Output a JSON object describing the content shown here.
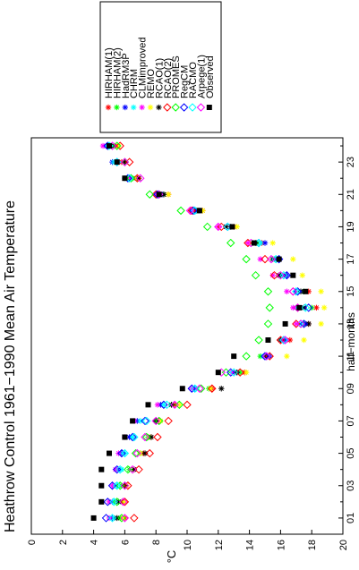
{
  "chart_data": {
    "type": "scatter",
    "title": "Heathrow Control 1961−1990 Mean Air Temperature",
    "xlabel": "half−months",
    "ylabel": "°C",
    "orientation": "rotated 90 degrees counter-clockwise",
    "xlim": [
      0,
      24.5
    ],
    "ylim": [
      0,
      20
    ],
    "x_ticks": [
      1,
      2,
      3,
      4,
      5,
      6,
      7,
      8,
      9,
      10,
      11,
      12,
      13,
      14,
      15,
      16,
      17,
      18,
      19,
      20,
      21,
      22,
      23,
      24
    ],
    "x_tick_labels": [
      "01",
      "03",
      "05",
      "07",
      "09",
      "11",
      "13",
      "15",
      "17",
      "19",
      "21",
      "23"
    ],
    "y_ticks": [
      0,
      2,
      4,
      6,
      8,
      10,
      12,
      14,
      16,
      18,
      20
    ],
    "y_tick_labels": [
      "0",
      "2",
      "4",
      "6",
      "8",
      "10",
      "12",
      "14",
      "16",
      "18",
      "20"
    ],
    "grid": false,
    "legend_position": "top, outside plot",
    "x": [
      1,
      2,
      3,
      4,
      5,
      6,
      7,
      8,
      9,
      10,
      11,
      12,
      13,
      14,
      15,
      16,
      17,
      18,
      19,
      20,
      21,
      22,
      23,
      24
    ],
    "series": [
      {
        "name": "HIRHAM(1)",
        "marker": "star",
        "color": "#ff0000",
        "values": [
          6.0,
          6.0,
          6.1,
          6.6,
          7.2,
          7.7,
          8.2,
          9.2,
          11.6,
          13.7,
          15.0,
          16.6,
          17.8,
          18.3,
          17.8,
          16.3,
          15.9,
          14.8,
          13.0,
          11.0,
          8.8,
          6.8,
          5.8,
          5.4
        ]
      },
      {
        "name": "HIRHAM(2)",
        "marker": "star",
        "color": "#00ff00",
        "values": [
          5.7,
          5.8,
          5.8,
          6.3,
          7.0,
          7.5,
          8.0,
          9.0,
          11.4,
          13.4,
          14.7,
          16.3,
          17.5,
          18.0,
          17.5,
          16.0,
          15.6,
          14.5,
          12.8,
          10.7,
          8.5,
          6.5,
          5.5,
          5.1
        ]
      },
      {
        "name": "HadRM3P",
        "marker": "star",
        "color": "#0000ff",
        "values": [
          5.2,
          5.2,
          5.4,
          5.6,
          5.8,
          6.3,
          6.8,
          8.3,
          10.5,
          13.2,
          15.3,
          16.3,
          17.6,
          17.5,
          17.3,
          16.4,
          15.8,
          15.0,
          12.8,
          10.8,
          8.4,
          6.2,
          5.2,
          4.8
        ]
      },
      {
        "name": "CHRM",
        "marker": "star",
        "color": "#00ffff",
        "values": [
          5.3,
          5.3,
          5.5,
          5.8,
          6.0,
          6.5,
          7.0,
          8.5,
          10.6,
          13.1,
          14.9,
          16.0,
          17.3,
          17.0,
          17.0,
          16.1,
          15.6,
          14.7,
          12.5,
          10.5,
          8.2,
          6.0,
          5.3,
          4.9
        ]
      },
      {
        "name": "CLMimproved",
        "marker": "star",
        "color": "#ff00ff",
        "values": [
          5.0,
          5.0,
          5.2,
          5.4,
          5.6,
          6.0,
          6.6,
          8.1,
          10.3,
          12.9,
          15.1,
          16.1,
          17.0,
          16.8,
          16.4,
          15.5,
          14.7,
          13.9,
          12.0,
          10.3,
          8.0,
          6.3,
          5.5,
          4.6
        ]
      },
      {
        "name": "REMO",
        "marker": "star",
        "color": "#ffff00",
        "values": [
          5.9,
          6.0,
          6.1,
          6.6,
          7.0,
          7.6,
          8.3,
          9.5,
          11.5,
          13.8,
          16.4,
          17.5,
          18.6,
          18.8,
          18.6,
          17.4,
          16.8,
          15.5,
          13.2,
          11.0,
          8.8,
          6.8,
          6.0,
          5.6
        ]
      },
      {
        "name": "RCAO(1)",
        "marker": "star",
        "color": "#000000",
        "values": [
          5.5,
          5.6,
          6.0,
          6.6,
          7.3,
          7.7,
          8.0,
          9.0,
          12.2,
          13.2,
          15.1,
          16.0,
          17.8,
          17.5,
          17.3,
          15.9,
          15.5,
          14.4,
          12.5,
          10.6,
          8.5,
          6.9,
          6.0,
          5.3
        ]
      },
      {
        "name": "RCAO(2)",
        "marker": "diamond",
        "color": "#ff0000",
        "values": [
          6.6,
          6.0,
          6.2,
          6.9,
          7.6,
          8.1,
          8.8,
          10.0,
          11.6,
          13.4,
          15.3,
          16.0,
          17.0,
          17.1,
          16.8,
          15.6,
          15.0,
          13.9,
          12.2,
          10.3,
          8.0,
          6.8,
          6.3,
          5.7
        ]
      },
      {
        "name": "PROMES",
        "marker": "diamond",
        "color": "#00ff00",
        "values": [
          5.8,
          5.5,
          5.7,
          6.2,
          6.7,
          7.4,
          8.2,
          9.5,
          10.9,
          12.5,
          13.8,
          14.6,
          15.2,
          15.3,
          15.2,
          14.4,
          13.8,
          12.8,
          11.3,
          9.6,
          7.6,
          6.4,
          6.0,
          5.5
        ]
      },
      {
        "name": "RegCM",
        "marker": "diamond",
        "color": "#0000ff",
        "values": [
          4.8,
          4.9,
          5.2,
          5.5,
          5.8,
          6.5,
          7.3,
          8.5,
          10.3,
          12.8,
          15.0,
          16.2,
          17.5,
          17.8,
          17.1,
          16.4,
          15.9,
          14.6,
          12.6,
          10.4,
          8.1,
          6.2,
          5.5,
          4.9
        ]
      },
      {
        "name": "RACMO",
        "marker": "diamond",
        "color": "#00ffff",
        "values": [
          5.2,
          5.3,
          5.5,
          5.7,
          6.0,
          6.6,
          7.4,
          8.7,
          10.5,
          13.0,
          15.1,
          16.2,
          17.3,
          17.6,
          17.0,
          16.2,
          15.7,
          14.6,
          12.6,
          10.5,
          8.2,
          6.3,
          5.5,
          5.0
        ]
      },
      {
        "name": "Arpege(1)",
        "marker": "diamond",
        "color": "#ff00ff",
        "values": [
          6.0,
          5.9,
          6.0,
          6.5,
          6.8,
          7.3,
          8.0,
          9.2,
          10.8,
          12.2,
          15.1,
          16.3,
          17.3,
          17.1,
          16.8,
          16.0,
          15.4,
          14.1,
          12.0,
          10.2,
          8.2,
          7.0,
          6.0,
          5.2
        ]
      },
      {
        "name": "Observed",
        "marker": "square",
        "color": "#000000",
        "values": [
          4.0,
          4.5,
          4.5,
          4.5,
          5.0,
          6.0,
          6.5,
          7.5,
          9.7,
          12.0,
          13.0,
          15.2,
          16.3,
          17.2,
          17.6,
          16.8,
          15.9,
          14.3,
          12.9,
          10.8,
          8.2,
          6.0,
          5.5,
          5.0
        ]
      }
    ]
  }
}
